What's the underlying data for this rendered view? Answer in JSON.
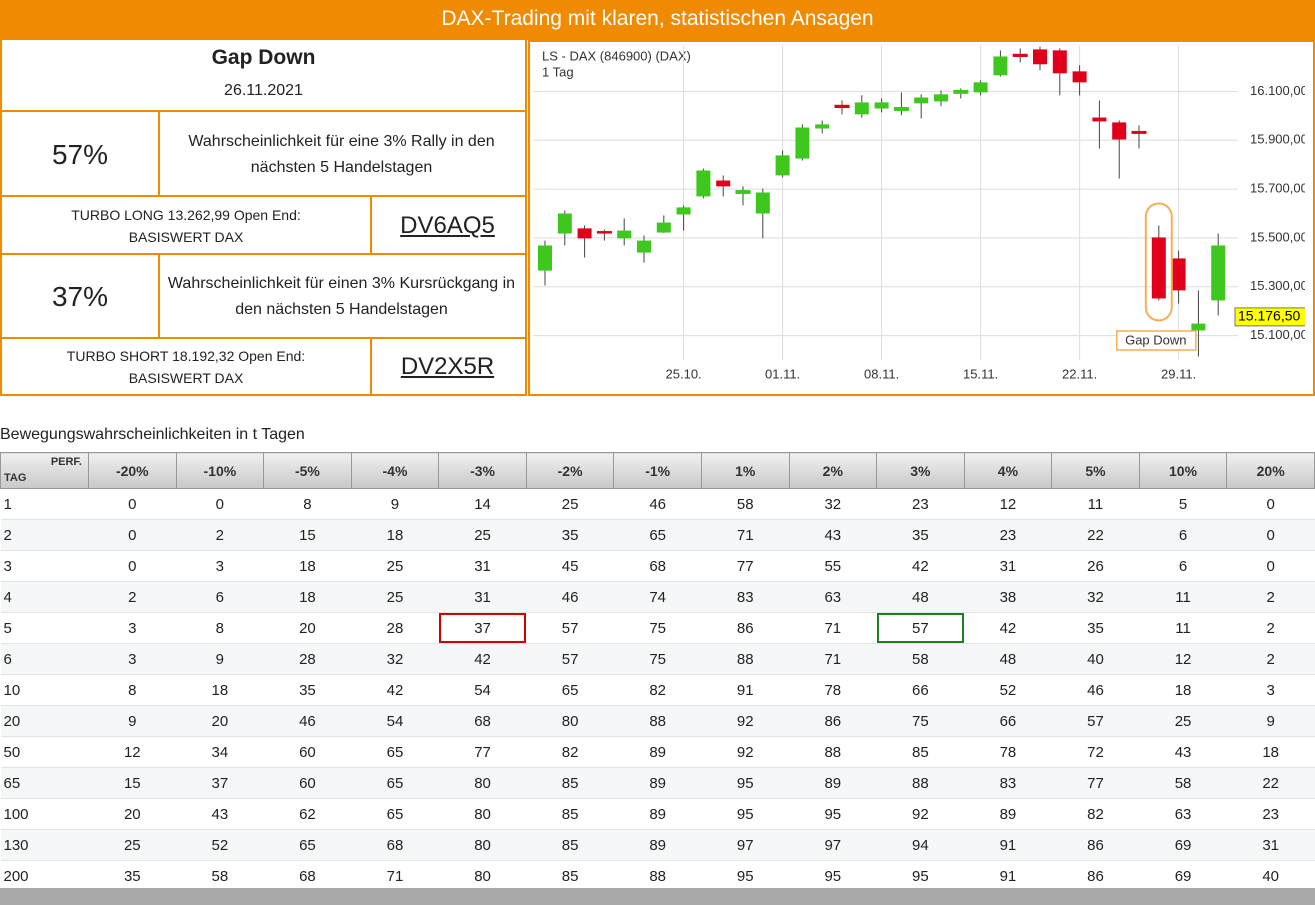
{
  "header": {
    "title": "DAX-Trading mit klaren, statistischen Ansagen"
  },
  "signal": {
    "title": "Gap Down",
    "date": "26.11.2021",
    "long": {
      "probability": "57%",
      "text": "Wahrscheinlichkeit für eine 3% Rally in den nächsten 5 Handelstagen",
      "product": "TURBO LONG 13.262,99 Open End:",
      "underlying": "BASISWERT DAX",
      "code": "DV6AQ5"
    },
    "short": {
      "probability": "37%",
      "text": "Wahrscheinlichkeit für einen 3% Kursrückgang in den nächsten 5 Handelstagen",
      "product": "TURBO SHORT 18.192,32 Open End:",
      "underlying": "BASISWERT DAX",
      "code": "DV2X5R"
    }
  },
  "chart_data": {
    "type": "candlestick",
    "title": "LS - DAX (846900) (DAX)",
    "subtitle": "1 Tag",
    "categories": [
      null,
      null,
      null,
      null,
      null,
      null,
      null,
      "25.10.",
      null,
      null,
      null,
      null,
      "01.11.",
      null,
      null,
      null,
      null,
      "08.11.",
      null,
      null,
      null,
      null,
      "15.11.",
      null,
      null,
      null,
      null,
      "22.11.",
      null,
      null,
      null,
      null,
      "29.11.",
      null,
      null
    ],
    "open": [
      15366,
      15518,
      15539,
      15526,
      15498,
      15440,
      15522,
      15596,
      15670,
      15735,
      15682,
      15600,
      15756,
      15825,
      15948,
      16043,
      16006,
      16030,
      16022,
      16051,
      16059,
      16092,
      16096,
      16166,
      16252,
      16272,
      16268,
      16182,
      15993,
      15973,
      15936,
      15502,
      15416,
      15121,
      15244
    ],
    "high": [
      15489,
      15612,
      15551,
      15534,
      15580,
      15510,
      15592,
      15633,
      15784,
      15756,
      15711,
      15702,
      15858,
      15965,
      15981,
      16063,
      16084,
      16071,
      16096,
      16088,
      16104,
      16112,
      16145,
      16268,
      16276,
      16284,
      16276,
      16207,
      16063,
      15981,
      15961,
      15551,
      15448,
      15285,
      15518
    ],
    "low": [
      15305,
      15469,
      15420,
      15489,
      15469,
      15399,
      15520,
      15530,
      15662,
      15670,
      15633,
      15498,
      15748,
      15817,
      15928,
      16006,
      15993,
      16014,
      16002,
      15989,
      16039,
      16071,
      16084,
      16161,
      16219,
      16186,
      16084,
      16084,
      15866,
      15743,
      15866,
      15244,
      15231,
      15014,
      15182
    ],
    "close": [
      15469,
      15600,
      15498,
      15522,
      15530,
      15489,
      15563,
      15625,
      15776,
      15711,
      15694,
      15686,
      15838,
      15952,
      15965,
      16034,
      16055,
      16055,
      16034,
      16075,
      16088,
      16104,
      16137,
      16243,
      16243,
      16211,
      16174,
      16137,
      15977,
      15903,
      15928,
      15252,
      15285,
      15149,
      15469
    ],
    "up_color": "#3ec81e",
    "down_color": "#e0001b",
    "ylim": [
      15000,
      16290
    ],
    "yticks": [
      {
        "value": 15100,
        "label": "15.100,00"
      },
      {
        "value": 15300,
        "label": "15.300,00"
      },
      {
        "value": 15500,
        "label": "15.500,00"
      },
      {
        "value": 15700,
        "label": "15.700,00"
      },
      {
        "value": 15900,
        "label": "15.900,00"
      },
      {
        "value": 16100,
        "label": "16.100,00"
      }
    ],
    "grid": true,
    "last_price": {
      "value": 15176.5,
      "label": "15.176,50"
    },
    "annotation": "Gap Down"
  },
  "table": {
    "title": "Bewegungswahrscheinlichkeiten in t Tagen",
    "row_header": "TAG",
    "col_header": "PERF.",
    "columns": [
      "-20%",
      "-10%",
      "-5%",
      "-4%",
      "-3%",
      "-2%",
      "-1%",
      "1%",
      "2%",
      "3%",
      "4%",
      "5%",
      "10%",
      "20%"
    ],
    "rows": [
      [
        1,
        0,
        0,
        8,
        9,
        14,
        25,
        46,
        58,
        32,
        23,
        12,
        11,
        5,
        0
      ],
      [
        2,
        0,
        2,
        15,
        18,
        25,
        35,
        65,
        71,
        43,
        35,
        23,
        22,
        6,
        0
      ],
      [
        3,
        0,
        3,
        18,
        25,
        31,
        45,
        68,
        77,
        55,
        42,
        31,
        26,
        6,
        0
      ],
      [
        4,
        2,
        6,
        18,
        25,
        31,
        46,
        74,
        83,
        63,
        48,
        38,
        32,
        11,
        2
      ],
      [
        5,
        3,
        8,
        20,
        28,
        37,
        57,
        75,
        86,
        71,
        57,
        42,
        35,
        11,
        2
      ],
      [
        6,
        3,
        9,
        28,
        32,
        42,
        57,
        75,
        88,
        71,
        58,
        48,
        40,
        12,
        2
      ],
      [
        10,
        8,
        18,
        35,
        42,
        54,
        65,
        82,
        91,
        78,
        66,
        52,
        46,
        18,
        3
      ],
      [
        20,
        9,
        20,
        46,
        54,
        68,
        80,
        88,
        92,
        86,
        75,
        66,
        57,
        25,
        9
      ],
      [
        50,
        12,
        34,
        60,
        65,
        77,
        82,
        89,
        92,
        88,
        85,
        78,
        72,
        43,
        18
      ],
      [
        65,
        15,
        37,
        60,
        65,
        80,
        85,
        89,
        95,
        89,
        88,
        83,
        77,
        58,
        22
      ],
      [
        100,
        20,
        43,
        62,
        65,
        80,
        85,
        89,
        95,
        95,
        92,
        89,
        82,
        63,
        23
      ],
      [
        130,
        25,
        52,
        65,
        68,
        80,
        85,
        89,
        97,
        97,
        94,
        91,
        86,
        69,
        31
      ],
      [
        200,
        35,
        58,
        68,
        71,
        80,
        85,
        88,
        95,
        95,
        95,
        91,
        86,
        69,
        40
      ]
    ]
  }
}
